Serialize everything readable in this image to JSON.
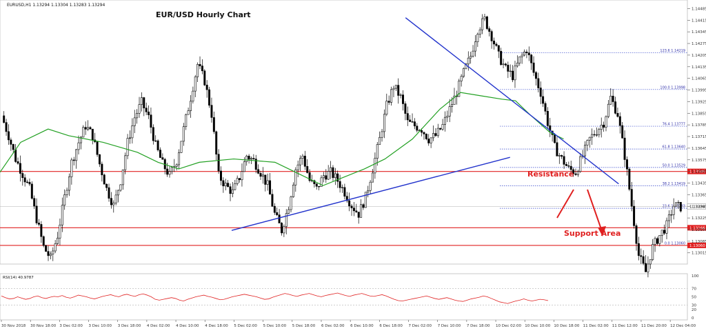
{
  "header": {
    "symbol_info": "EURUSD,H1  1.13294 1.13304 1.13283 1.13294",
    "title": "EUR/USD Hourly Chart"
  },
  "annotations": {
    "resistance": "Resistance",
    "support": "Support Area"
  },
  "rsi": {
    "label": "RSI(14) 40.9787",
    "ticks": [
      "100",
      "70",
      "50",
      "30",
      "20",
      "0"
    ],
    "values": [
      52,
      48,
      45,
      46,
      50,
      47,
      44,
      46,
      50,
      52,
      48,
      46,
      49,
      51,
      50,
      53,
      49,
      47,
      50,
      54,
      52,
      50,
      47,
      45,
      48,
      51,
      53,
      55,
      52,
      50,
      54,
      56,
      53,
      51,
      55,
      57,
      54,
      50,
      44,
      42,
      44,
      46,
      48,
      46,
      42,
      40,
      44,
      47,
      50,
      52,
      54,
      51,
      49,
      46,
      43,
      44,
      47,
      50,
      52,
      54,
      56,
      54,
      52,
      50,
      47,
      44,
      45,
      49,
      52,
      55,
      58,
      56,
      53,
      51,
      54,
      56,
      58,
      55,
      52,
      50,
      53,
      55,
      57,
      59,
      56,
      53,
      51,
      54,
      56,
      58,
      55,
      52,
      51,
      53,
      55,
      52,
      48,
      44,
      41,
      40,
      42,
      44,
      46,
      48,
      50,
      52,
      49,
      46,
      44,
      46,
      48,
      45,
      42,
      40,
      39,
      42,
      45,
      47,
      49,
      52,
      50,
      46,
      42,
      38,
      36,
      34,
      37,
      40,
      42,
      45,
      42,
      40,
      42,
      44,
      43,
      41
    ]
  },
  "chart_data": {
    "type": "candlestick",
    "title": "EUR/USD Hourly Chart",
    "y_ticks": [
      "1.14485",
      "1.14415",
      "1.14345",
      "1.14275",
      "1.14205",
      "1.14135",
      "1.14065",
      "1.13995",
      "1.13925",
      "1.13855",
      "1.13785",
      "1.13715",
      "1.13645",
      "1.13575",
      "1.13505",
      "1.13435",
      "1.13365",
      "1.13295",
      "1.13225",
      "1.13155",
      "1.13085",
      "1.13015"
    ],
    "y_range": [
      1.1296,
      1.1452
    ],
    "x_ticks": [
      "30 Nov 2018",
      "30 Nov 18:00",
      "3 Dec 02:00",
      "3 Dec 10:00",
      "3 Dec 18:00",
      "4 Dec 02:00",
      "4 Dec 10:00",
      "4 Dec 18:00",
      "5 Dec 02:00",
      "5 Dec 10:00",
      "5 Dec 18:00",
      "6 Dec 02:00",
      "6 Dec 10:00",
      "6 Dec 18:00",
      "7 Dec 02:00",
      "7 Dec 10:00",
      "7 Dec 18:00",
      "10 Dec 02:00",
      "10 Dec 10:00",
      "10 Dec 18:00",
      "11 Dec 02:00",
      "11 Dec 12:00",
      "11 Dec 20:00",
      "12 Dec 04:00"
    ],
    "close_path": [
      1.1384,
      1.1372,
      1.1358,
      1.1349,
      1.134,
      1.1322,
      1.1305,
      1.1298,
      1.1312,
      1.1335,
      1.1356,
      1.1368,
      1.1378,
      1.1372,
      1.1355,
      1.134,
      1.133,
      1.1345,
      1.1368,
      1.1383,
      1.1392,
      1.1383,
      1.1366,
      1.1355,
      1.1348,
      1.1357,
      1.1376,
      1.1395,
      1.1415,
      1.1405,
      1.1385,
      1.1348,
      1.1342,
      1.1338,
      1.1347,
      1.136,
      1.1357,
      1.135,
      1.1342,
      1.1325,
      1.1315,
      1.133,
      1.1352,
      1.136,
      1.1345,
      1.134,
      1.1348,
      1.135,
      1.1345,
      1.1338,
      1.133,
      1.1325,
      1.1335,
      1.1352,
      1.137,
      1.139,
      1.1402,
      1.1395,
      1.138,
      1.1378,
      1.1376,
      1.137,
      1.1372,
      1.1378,
      1.1388,
      1.1398,
      1.141,
      1.142,
      1.1436,
      1.1442,
      1.1432,
      1.142,
      1.1412,
      1.1408,
      1.1418,
      1.1424,
      1.141,
      1.1398,
      1.138,
      1.1365,
      1.1358,
      1.1352,
      1.135,
      1.136,
      1.137,
      1.1375,
      1.138,
      1.1395,
      1.1385,
      1.136,
      1.133,
      1.13,
      1.129,
      1.1305,
      1.1312,
      1.1318,
      1.133,
      1.1329
    ],
    "moving_average": {
      "points": [
        [
          0,
          1.135
        ],
        [
          0.03,
          1.1368
        ],
        [
          0.07,
          1.1376
        ],
        [
          0.1,
          1.1372
        ],
        [
          0.15,
          1.1368
        ],
        [
          0.2,
          1.1362
        ],
        [
          0.23,
          1.1356
        ],
        [
          0.26,
          1.1352
        ],
        [
          0.29,
          1.1356
        ],
        [
          0.34,
          1.1358
        ],
        [
          0.4,
          1.1356
        ],
        [
          0.43,
          1.135
        ],
        [
          0.47,
          1.1342
        ],
        [
          0.5,
          1.1347
        ],
        [
          0.53,
          1.1352
        ],
        [
          0.56,
          1.1358
        ],
        [
          0.6,
          1.137
        ],
        [
          0.64,
          1.1388
        ],
        [
          0.67,
          1.1398
        ],
        [
          0.7,
          1.1396
        ],
        [
          0.73,
          1.1394
        ],
        [
          0.75,
          1.1393
        ],
        [
          0.77,
          1.1385
        ],
        [
          0.8,
          1.1374
        ],
        [
          0.82,
          1.137
        ]
      ]
    },
    "trend_lines": [
      {
        "name": "rising-support",
        "points": [
          [
            0.337,
            1.1315
          ],
          [
            0.742,
            1.1359
          ]
        ]
      },
      {
        "name": "falling-resistance",
        "points": [
          [
            0.59,
            1.1443
          ],
          [
            0.9,
            1.1343
          ]
        ]
      }
    ],
    "horizontal_levels": [
      {
        "kind": "resistance",
        "value": 1.13505,
        "label": "1.13505"
      },
      {
        "kind": "support",
        "value": 1.13166,
        "label": "1.13166"
      },
      {
        "kind": "support",
        "value": 1.1306,
        "label": "1.13060"
      },
      {
        "kind": "current",
        "value": 1.13294,
        "label": "1.13294"
      }
    ],
    "fibonacci_levels": [
      {
        "label": "123.6  1.14219",
        "value": 1.14219
      },
      {
        "label": "100.0  1.13998",
        "value": 1.13998
      },
      {
        "label": "76.4  1.13777",
        "value": 1.13777
      },
      {
        "label": "61.8  1.13640",
        "value": 1.1364
      },
      {
        "label": "50.0  1.13529",
        "value": 1.13529
      },
      {
        "label": "38.2  1.13419",
        "value": 1.13419
      },
      {
        "label": "23.6  1.13283",
        "value": 1.13283
      },
      {
        "label": "0.0  1.13060",
        "value": 1.1306
      }
    ]
  }
}
